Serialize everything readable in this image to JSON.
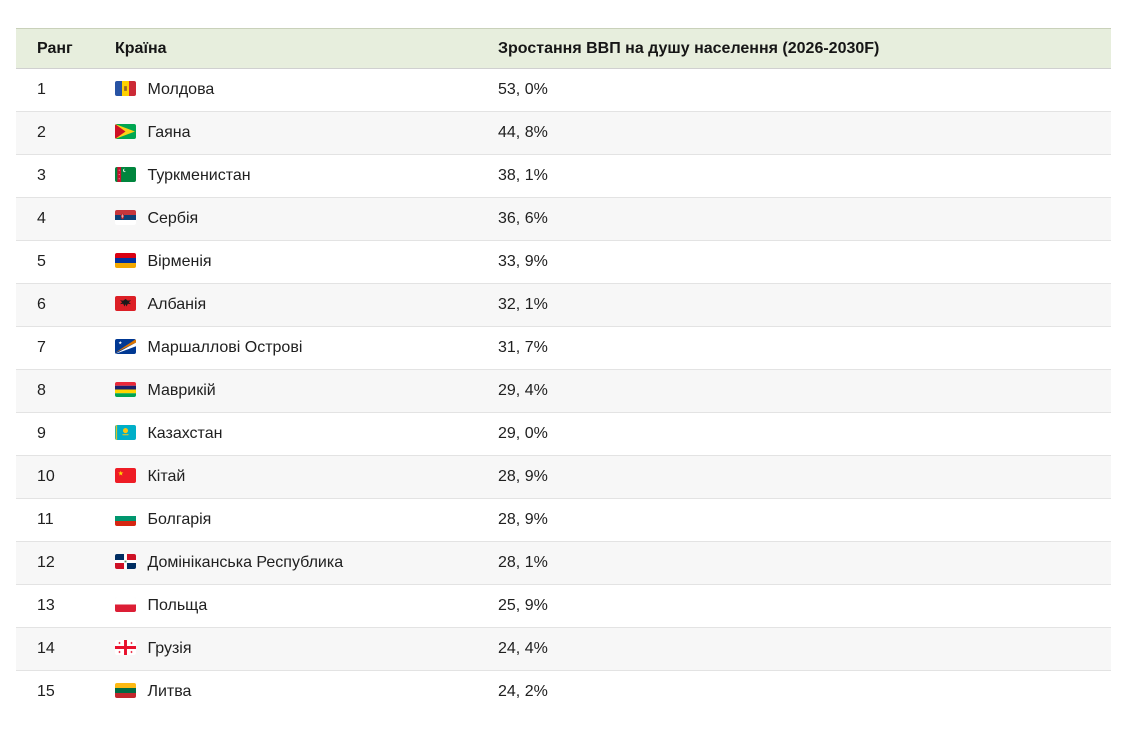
{
  "table": {
    "header": {
      "rank_label": "Ранг",
      "country_label": "Країна",
      "value_label": "Зростання ВВП на душу населення (2026-2030F)"
    },
    "rows": [
      {
        "rank": "1",
        "flag": "moldova-flag-icon",
        "country": "Молдова",
        "value": "53, 0%"
      },
      {
        "rank": "2",
        "flag": "guyana-flag-icon",
        "country": "Гаяна",
        "value": "44, 8%"
      },
      {
        "rank": "3",
        "flag": "turkmenistan-flag-icon",
        "country": "Туркменистан",
        "value": "38, 1%"
      },
      {
        "rank": "4",
        "flag": "serbia-flag-icon",
        "country": "Сербія",
        "value": "36, 6%"
      },
      {
        "rank": "5",
        "flag": "armenia-flag-icon",
        "country": "Вірменія",
        "value": "33, 9%"
      },
      {
        "rank": "6",
        "flag": "albania-flag-icon",
        "country": "Албанія",
        "value": "32, 1%"
      },
      {
        "rank": "7",
        "flag": "marshall-islands-flag-icon",
        "country": "Маршаллові Острові",
        "value": "31, 7%"
      },
      {
        "rank": "8",
        "flag": "mauritius-flag-icon",
        "country": "Маврикій",
        "value": "29, 4%"
      },
      {
        "rank": "9",
        "flag": "kazakhstan-flag-icon",
        "country": "Казахстан",
        "value": "29, 0%"
      },
      {
        "rank": "10",
        "flag": "china-flag-icon",
        "country": "Кітай",
        "value": "28, 9%"
      },
      {
        "rank": "11",
        "flag": "bulgaria-flag-icon",
        "country": "Болгарія",
        "value": "28, 9%"
      },
      {
        "rank": "12",
        "flag": "dominican-republic-flag-icon",
        "country": "Домініканська Республика",
        "value": "28, 1%"
      },
      {
        "rank": "13",
        "flag": "poland-flag-icon",
        "country": "Польща",
        "value": "25, 9%"
      },
      {
        "rank": "14",
        "flag": "georgia-flag-icon",
        "country": "Грузія",
        "value": "24, 4%"
      },
      {
        "rank": "15",
        "flag": "lithuania-flag-icon",
        "country": "Литва",
        "value": "24, 2%"
      }
    ]
  },
  "colors": {
    "header_bg": "#e7eedd",
    "header_top_border": "#c9d1ba",
    "header_bottom_border": "#d0d0d0",
    "row_bg": "#ffffff",
    "row_alt_bg": "#f7f7f7",
    "row_border": "#e3e3e3",
    "text": "#1f1f1f"
  },
  "chart_data": {
    "type": "table",
    "title": "Зростання ВВП на душу населення (2026-2030F)",
    "columns": [
      "Ранг",
      "Країна",
      "Зростання ВВП на душу населення (2026-2030F)"
    ],
    "categories": [
      "Молдова",
      "Гаяна",
      "Туркменистан",
      "Сербія",
      "Вірменія",
      "Албанія",
      "Маршаллові Острові",
      "Маврикій",
      "Казахстан",
      "Кітай",
      "Болгарія",
      "Домініканська Республика",
      "Польща",
      "Грузія",
      "Литва"
    ],
    "ranks": [
      1,
      2,
      3,
      4,
      5,
      6,
      7,
      8,
      9,
      10,
      11,
      12,
      13,
      14,
      15
    ],
    "values": [
      53.0,
      44.8,
      38.1,
      36.6,
      33.9,
      32.1,
      31.7,
      29.4,
      29.0,
      28.9,
      28.9,
      28.1,
      25.9,
      24.4,
      24.2
    ],
    "value_unit": "%",
    "layout": "ranked list, alternating row shading, green header band"
  }
}
